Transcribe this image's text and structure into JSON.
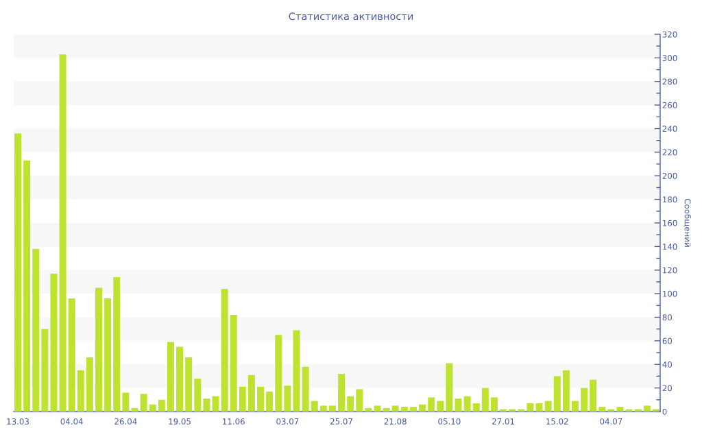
{
  "chart_data": {
    "type": "bar",
    "title": "Статистика активности",
    "ylabel": "Сообщений",
    "categories": [
      "13.03",
      null,
      null,
      null,
      null,
      null,
      "04.04",
      null,
      null,
      null,
      null,
      null,
      "26.04",
      null,
      null,
      null,
      null,
      null,
      "19.05",
      null,
      null,
      null,
      null,
      null,
      "11.06",
      null,
      null,
      null,
      null,
      null,
      "03.07",
      null,
      null,
      null,
      null,
      null,
      "25.07",
      null,
      null,
      null,
      null,
      null,
      "21.08",
      null,
      null,
      null,
      null,
      null,
      "05.10",
      null,
      null,
      null,
      null,
      null,
      "27.01",
      null,
      null,
      null,
      null,
      null,
      "15.02",
      null,
      null,
      null,
      null,
      null,
      "04.07",
      null,
      null,
      null,
      null,
      null
    ],
    "values": [
      236,
      213,
      138,
      70,
      117,
      303,
      96,
      35,
      46,
      105,
      96,
      114,
      16,
      3,
      15,
      6,
      10,
      59,
      55,
      46,
      28,
      11,
      13,
      104,
      82,
      21,
      31,
      21,
      17,
      65,
      22,
      69,
      38,
      9,
      5,
      5,
      32,
      13,
      19,
      3,
      5,
      3,
      5,
      4,
      4,
      6,
      12,
      9,
      41,
      11,
      13,
      7,
      20,
      12,
      2,
      2,
      2,
      7,
      7,
      9,
      30,
      35,
      9,
      20,
      27,
      4,
      2,
      4,
      2,
      2,
      5,
      2
    ],
    "color": "#bde22f",
    "ylim": [
      0,
      320
    ],
    "yticks": [
      0,
      20,
      40,
      60,
      80,
      100,
      120,
      140,
      160,
      180,
      200,
      220,
      240,
      260,
      280,
      300,
      320
    ],
    "bands": [
      {
        "axis": "y",
        "from": 20,
        "to": 40,
        "color": "#f7f7f7"
      },
      {
        "axis": "y",
        "from": 60,
        "to": 80,
        "color": "#f7f7f7"
      },
      {
        "axis": "y",
        "from": 100,
        "to": 120,
        "color": "#f7f7f7"
      },
      {
        "axis": "y",
        "from": 140,
        "to": 160,
        "color": "#f7f7f7"
      },
      {
        "axis": "y",
        "from": 180,
        "to": 200,
        "color": "#f7f7f7"
      },
      {
        "axis": "y",
        "from": 220,
        "to": 240,
        "color": "#f7f7f7"
      },
      {
        "axis": "y",
        "from": 260,
        "to": 280,
        "color": "#f7f7f7"
      },
      {
        "axis": "y",
        "from": 300,
        "to": 320,
        "color": "#f7f7f7"
      }
    ]
  }
}
